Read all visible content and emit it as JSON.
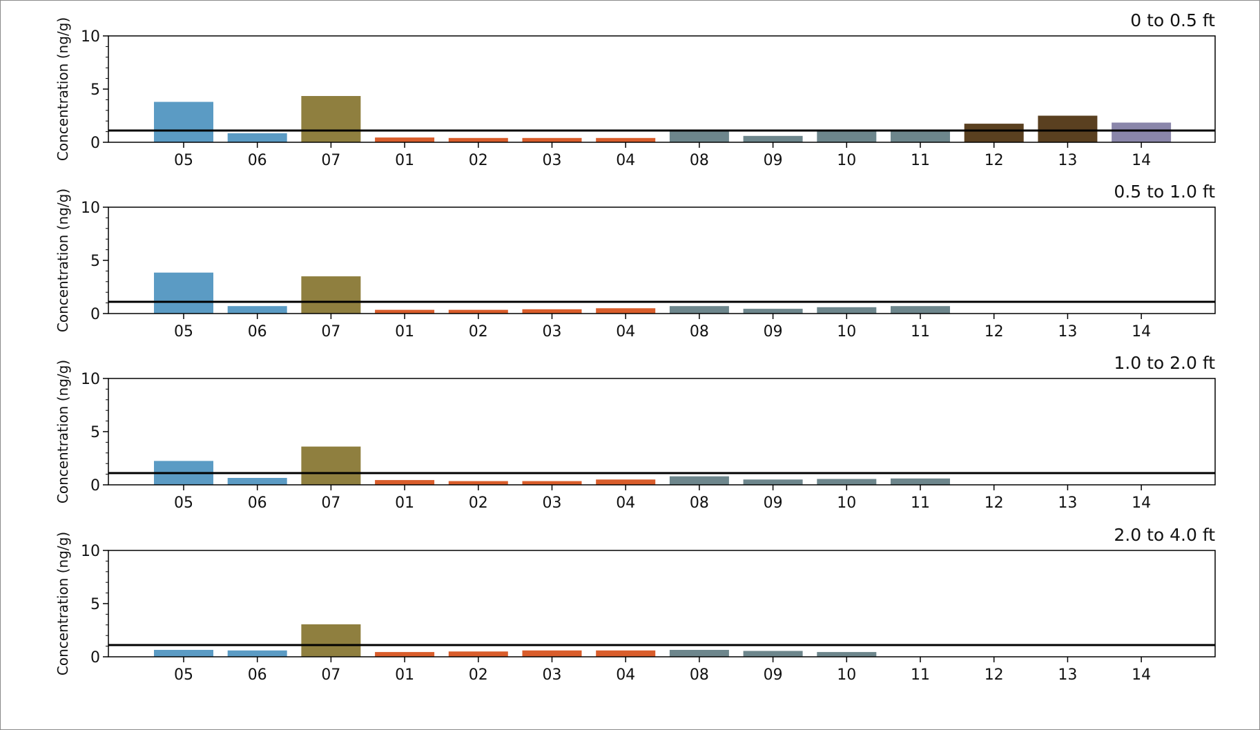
{
  "chart_data": {
    "type": "bar",
    "ylabel": "Concentration (ng/g)",
    "ylim": [
      0,
      10
    ],
    "yticks": [
      0,
      5,
      10
    ],
    "reference_line": 1.1,
    "categories": [
      "05",
      "06",
      "07",
      "01",
      "02",
      "03",
      "04",
      "08",
      "09",
      "10",
      "11",
      "12",
      "13",
      "14"
    ],
    "colors": {
      "05": "#5b9bc4",
      "06": "#5b9bc4",
      "07": "#8f7f3f",
      "01": "#d95d2b",
      "02": "#d95d2b",
      "03": "#d95d2b",
      "04": "#d95d2b",
      "08": "#6d868c",
      "09": "#6d868c",
      "10": "#6d868c",
      "11": "#6d868c",
      "12": "#5a4020",
      "13": "#5a4020",
      "14": "#8a86aa"
    },
    "panels": [
      {
        "title": "0 to 0.5 ft",
        "values": [
          3.8,
          0.85,
          4.35,
          0.45,
          0.4,
          0.4,
          0.4,
          1.05,
          0.6,
          1.05,
          1.05,
          1.75,
          2.5,
          1.85
        ]
      },
      {
        "title": "0.5 to 1.0 ft",
        "values": [
          3.85,
          0.7,
          3.5,
          0.35,
          0.35,
          0.4,
          0.5,
          0.7,
          0.45,
          0.6,
          0.7,
          null,
          null,
          null
        ]
      },
      {
        "title": "1.0 to 2.0 ft",
        "values": [
          2.25,
          0.65,
          3.6,
          0.45,
          0.35,
          0.35,
          0.5,
          0.8,
          0.5,
          0.55,
          0.6,
          null,
          null,
          null
        ]
      },
      {
        "title": "2.0 to 4.0 ft",
        "values": [
          0.65,
          0.6,
          3.05,
          0.45,
          0.5,
          0.6,
          0.6,
          0.65,
          0.55,
          0.45,
          null,
          null,
          null,
          null
        ]
      }
    ]
  }
}
